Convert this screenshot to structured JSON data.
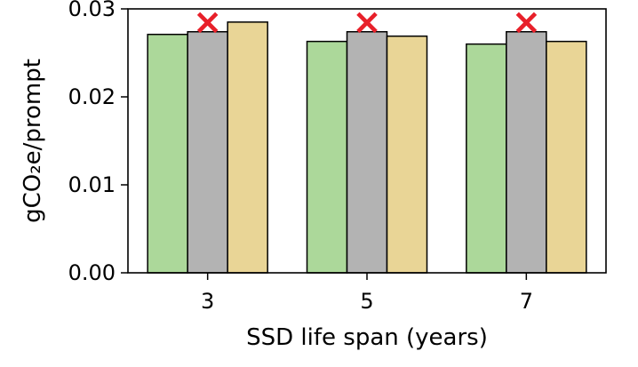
{
  "chart_data": {
    "type": "bar",
    "title": "",
    "xlabel": "SSD life span (years)",
    "ylabel": "gCO₂e/prompt",
    "categories": [
      "3",
      "5",
      "7"
    ],
    "ylim": [
      0,
      0.03
    ],
    "yticks": [
      0.0,
      0.01,
      0.02,
      0.03
    ],
    "ytick_labels": [
      "0.00",
      "0.01",
      "0.02",
      "0.03"
    ],
    "grid": false,
    "legend": "none",
    "series": [
      {
        "color": "#acd89a",
        "values": [
          0.0271,
          0.0263,
          0.026
        ]
      },
      {
        "color": "#b3b3b3",
        "values": [
          0.0274,
          0.0274,
          0.0274
        ]
      },
      {
        "color": "#e9d596",
        "values": [
          0.0285,
          0.0269,
          0.0263
        ]
      }
    ],
    "annotations": [
      {
        "type": "marker",
        "symbol": "×",
        "color": "#e8202a",
        "series_index": 1,
        "category_index": 0
      },
      {
        "type": "marker",
        "symbol": "×",
        "color": "#e8202a",
        "series_index": 1,
        "category_index": 1
      },
      {
        "type": "marker",
        "symbol": "×",
        "color": "#e8202a",
        "series_index": 1,
        "category_index": 2
      }
    ]
  }
}
